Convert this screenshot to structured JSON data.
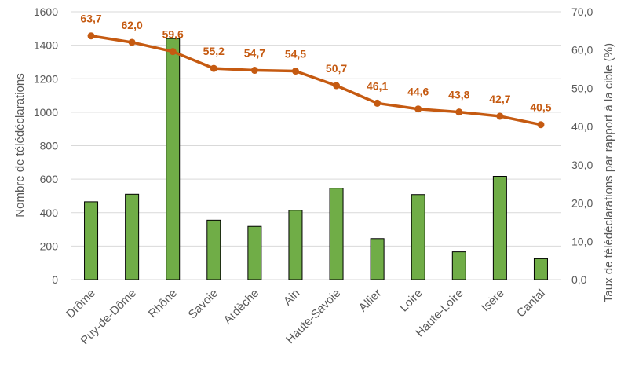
{
  "chart_data": {
    "type": "bar+line",
    "categories": [
      "Drôme",
      "Puy-de-Dôme",
      "Rhône",
      "Savoie",
      "Ardèche",
      "Ain",
      "Haute-Savoie",
      "Allier",
      "Loire",
      "Haute-Loire",
      "Isère",
      "Cantal"
    ],
    "series": [
      {
        "type": "bar",
        "axis": "left",
        "color": "#70ad47",
        "values": [
          465,
          510,
          1440,
          355,
          318,
          414,
          546,
          245,
          508,
          166,
          617,
          125
        ]
      },
      {
        "type": "line",
        "axis": "right",
        "color": "#c55a11",
        "values": [
          63.7,
          62.0,
          59.6,
          55.2,
          54.7,
          54.5,
          50.7,
          46.1,
          44.6,
          43.8,
          42.7,
          40.5
        ],
        "data_labels": [
          "63,7",
          "62,0",
          "59,6",
          "55,2",
          "54,7",
          "54,5",
          "50,7",
          "46,1",
          "44,6",
          "43,8",
          "42,7",
          "40,5"
        ]
      }
    ],
    "ylabel": "Nombre de télédéclarations",
    "y2label": "Taux de télédéclarations par rapport à la cible (%)",
    "ylim": [
      0,
      1600
    ],
    "y2lim": [
      0,
      70
    ],
    "yticks": [
      "0",
      "200",
      "400",
      "600",
      "800",
      "1000",
      "1200",
      "1400",
      "1600"
    ],
    "y2ticks": [
      "0,0",
      "10,0",
      "20,0",
      "30,0",
      "40,0",
      "50,0",
      "60,0",
      "70,0"
    ],
    "grid": true,
    "legend": "none"
  }
}
